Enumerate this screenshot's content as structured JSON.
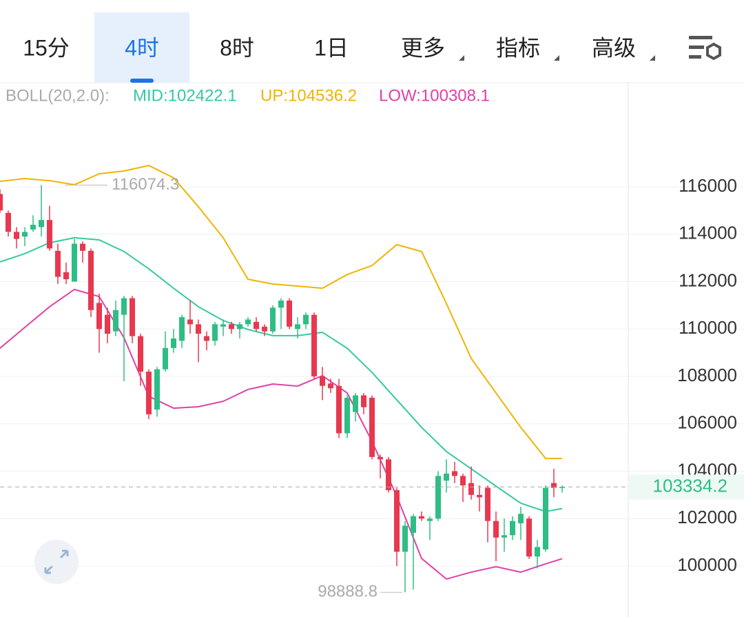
{
  "tabs": [
    {
      "label": "15分"
    },
    {
      "label": "4时",
      "selected": true
    },
    {
      "label": "8时"
    },
    {
      "label": "1日"
    },
    {
      "label": "更多",
      "dropdown": true
    },
    {
      "label": "指标",
      "dropdown": true
    },
    {
      "label": "高级",
      "dropdown": true
    }
  ],
  "chart_data": {
    "type": "candlestick",
    "indicator_label": "BOLL(20,2.0):",
    "up_color": "#2ebd85",
    "down_color": "#e8384f",
    "open": [
      115700,
      114900,
      114100,
      113900,
      114200,
      114300,
      114600,
      113300,
      112400,
      112000,
      113600,
      113300,
      111100,
      110600,
      109900,
      110600,
      111300,
      109700,
      108200,
      106600,
      108300,
      109200,
      109500,
      110400,
      110200,
      109700,
      109500,
      110100,
      110200,
      110000,
      110200,
      110300,
      110100,
      109900,
      110900,
      111200,
      110000,
      110200,
      110600,
      108000,
      107700,
      107600,
      105600,
      106500,
      107200,
      107100,
      104600,
      104500,
      103200,
      100600,
      101400,
      102100,
      101900,
      102000,
      103600,
      104000,
      103800,
      103500,
      103000,
      103300,
      101900,
      101200,
      101300,
      101800,
      102000,
      100400,
      100700,
      103500,
      103300
    ],
    "high": [
      115900,
      115000,
      114300,
      114300,
      114800,
      116074.3,
      115200,
      113600,
      112800,
      113800,
      113700,
      113400,
      111500,
      110900,
      111200,
      111400,
      111400,
      109800,
      108300,
      108400,
      109900,
      110000,
      110600,
      111200,
      110400,
      109900,
      110300,
      110400,
      110300,
      110300,
      110500,
      110500,
      110200,
      111000,
      111300,
      111300,
      110500,
      110700,
      110700,
      108400,
      107900,
      107900,
      107200,
      107300,
      107300,
      107200,
      104700,
      104600,
      103300,
      101900,
      102200,
      102300,
      102100,
      104000,
      104500,
      104400,
      103900,
      104200,
      103400,
      103400,
      102300,
      102000,
      102100,
      102500,
      102100,
      101100,
      103400,
      104100,
      103400
    ],
    "low": [
      114900,
      113900,
      113400,
      113500,
      114100,
      113900,
      113300,
      111900,
      111900,
      112000,
      112800,
      110500,
      109000,
      109400,
      109700,
      107800,
      109400,
      107600,
      106200,
      106300,
      108200,
      109000,
      109200,
      109800,
      108600,
      109100,
      109300,
      109700,
      109800,
      109600,
      110100,
      109900,
      109700,
      109800,
      110000,
      110000,
      109600,
      110000,
      107900,
      107000,
      107300,
      105400,
      105400,
      106100,
      106400,
      104500,
      103700,
      103100,
      100000,
      98888.8,
      99000,
      101900,
      101100,
      101900,
      103100,
      103500,
      102700,
      102800,
      102300,
      101000,
      100200,
      100600,
      101100,
      101100,
      100300,
      99900,
      100600,
      102900,
      103100
    ],
    "close": [
      115000,
      114100,
      113800,
      114100,
      114400,
      114600,
      113400,
      112200,
      112100,
      113600,
      113300,
      110800,
      110000,
      109800,
      110800,
      111300,
      109700,
      108200,
      106400,
      108300,
      109200,
      109600,
      110500,
      110200,
      109800,
      109500,
      110200,
      110200,
      110000,
      110200,
      110400,
      110000,
      109900,
      110900,
      111200,
      110100,
      110200,
      110600,
      108000,
      107600,
      107500,
      105600,
      107100,
      107200,
      106700,
      104600,
      104500,
      103200,
      100600,
      101700,
      102100,
      102000,
      102000,
      103800,
      103900,
      103800,
      103400,
      103000,
      102900,
      101900,
      101200,
      101300,
      101900,
      102200,
      100400,
      100800,
      103300,
      103300,
      103334.2
    ],
    "bands": {
      "x": [
        0,
        3,
        6,
        9,
        12,
        15,
        18,
        21,
        24,
        27,
        30,
        33,
        36,
        39,
        42,
        45,
        48,
        51,
        54,
        57,
        60,
        63,
        66,
        68
      ],
      "series": [
        {
          "name": "MID",
          "legend": "MID:102422.1",
          "color": "#35c9a0",
          "values": [
            112830,
            113180,
            113640,
            113850,
            113760,
            113270,
            112540,
            111720,
            110940,
            110360,
            109980,
            109720,
            109720,
            109860,
            109190,
            108170,
            107010,
            105850,
            104830,
            104100,
            103370,
            102650,
            102300,
            102422.1
          ]
        },
        {
          "name": "UP",
          "legend": "UP:104536.2",
          "color": "#f0b400",
          "values": [
            116230,
            116350,
            116260,
            116090,
            116550,
            116670,
            116900,
            116380,
            115160,
            113850,
            112100,
            111900,
            111810,
            111720,
            112300,
            112680,
            113560,
            113270,
            111080,
            108760,
            107300,
            105850,
            104540,
            104536.2
          ]
        },
        {
          "name": "LOW",
          "legend": "LOW:100308.1",
          "color": "#e040a8",
          "values": [
            109190,
            110070,
            110940,
            111670,
            111370,
            109630,
            107160,
            106660,
            106720,
            106950,
            107450,
            107680,
            107590,
            108030,
            107300,
            105260,
            102940,
            100320,
            99450,
            99740,
            99970,
            99740,
            100090,
            100308.1
          ]
        }
      ]
    },
    "high_label": "116074.3",
    "low_label": "98888.8",
    "last_price": 103334.2,
    "ylim": [
      98284,
      120393
    ],
    "yticks": [
      100000,
      102000,
      104000,
      106000,
      108000,
      110000,
      112000,
      114000,
      116000
    ],
    "grid": true
  }
}
